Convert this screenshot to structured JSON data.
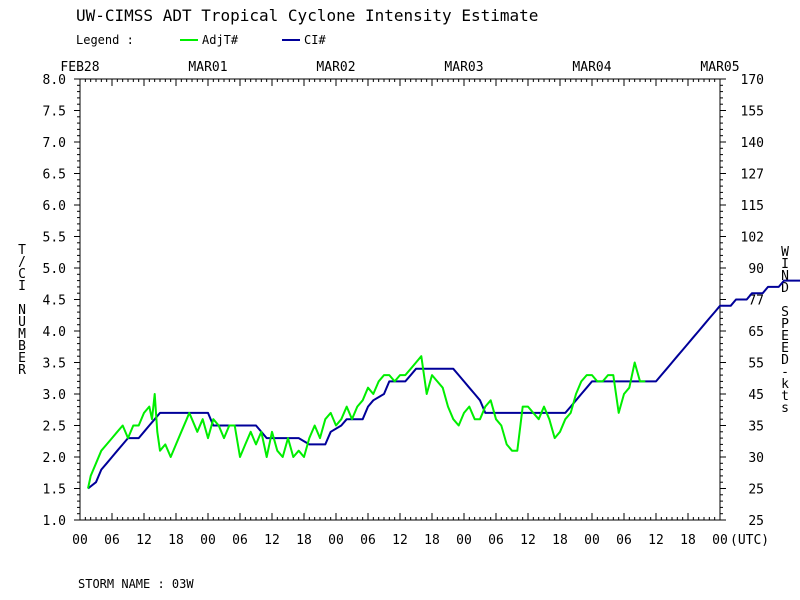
{
  "chart_data": {
    "type": "line",
    "title": "UW-CIMSS ADT Tropical Cyclone Intensity Estimate",
    "legend_label": "Legend :",
    "legend_placement": "top-left",
    "ylabel_left": "T/CI NUMBER",
    "ylabel_right": "WIND SPEED-kts",
    "xlabel": "(UTC)",
    "footer": "STORM NAME : 03W",
    "ylim": [
      1.0,
      8.0
    ],
    "xlim_hours": [
      0,
      120
    ],
    "grid": false,
    "y_ticks": [
      "1.0",
      "1.5",
      "2.0",
      "2.5",
      "3.0",
      "3.5",
      "4.0",
      "4.5",
      "5.0",
      "5.5",
      "6.0",
      "6.5",
      "7.0",
      "7.5",
      "8.0"
    ],
    "wind_ticks": [
      "25",
      "25",
      "30",
      "35",
      "45",
      "55",
      "65",
      "77",
      "90",
      "102",
      "115",
      "127",
      "140",
      "155",
      "170"
    ],
    "date_labels": [
      "FEB28",
      "MAR01",
      "MAR02",
      "MAR03",
      "MAR04",
      "MAR05"
    ],
    "x_tick_labels": [
      "00",
      "06",
      "12",
      "18",
      "00",
      "06",
      "12",
      "18",
      "00",
      "06",
      "12",
      "18",
      "00",
      "06",
      "12",
      "18",
      "00",
      "06",
      "12",
      "18",
      "00"
    ],
    "series": [
      {
        "name": "AdjT#",
        "color": "#00ee00",
        "points": [
          [
            1.5,
            1.5
          ],
          [
            2,
            1.7
          ],
          [
            3,
            1.9
          ],
          [
            4,
            2.1
          ],
          [
            5,
            2.2
          ],
          [
            6,
            2.3
          ],
          [
            7,
            2.4
          ],
          [
            8,
            2.5
          ],
          [
            9,
            2.3
          ],
          [
            10,
            2.5
          ],
          [
            11,
            2.5
          ],
          [
            12,
            2.7
          ],
          [
            13,
            2.8
          ],
          [
            13.5,
            2.6
          ],
          [
            14,
            3.0
          ],
          [
            14.5,
            2.4
          ],
          [
            15,
            2.1
          ],
          [
            16,
            2.2
          ],
          [
            17,
            2.0
          ],
          [
            18,
            2.2
          ],
          [
            19,
            2.4
          ],
          [
            20,
            2.6
          ],
          [
            20.5,
            2.7
          ],
          [
            21,
            2.6
          ],
          [
            22,
            2.4
          ],
          [
            23,
            2.6
          ],
          [
            24,
            2.3
          ],
          [
            25,
            2.6
          ],
          [
            26,
            2.5
          ],
          [
            27,
            2.3
          ],
          [
            28,
            2.5
          ],
          [
            29,
            2.5
          ],
          [
            30,
            2.0
          ],
          [
            31,
            2.2
          ],
          [
            32,
            2.4
          ],
          [
            33,
            2.2
          ],
          [
            34,
            2.4
          ],
          [
            35,
            2.0
          ],
          [
            36,
            2.4
          ],
          [
            37,
            2.1
          ],
          [
            38,
            2.0
          ],
          [
            39,
            2.3
          ],
          [
            40,
            2.0
          ],
          [
            41,
            2.1
          ],
          [
            42,
            2.0
          ],
          [
            43,
            2.3
          ],
          [
            44,
            2.5
          ],
          [
            45,
            2.3
          ],
          [
            46,
            2.6
          ],
          [
            47,
            2.7
          ],
          [
            48,
            2.5
          ],
          [
            49,
            2.6
          ],
          [
            50,
            2.8
          ],
          [
            51,
            2.6
          ],
          [
            52,
            2.8
          ],
          [
            53,
            2.9
          ],
          [
            54,
            3.1
          ],
          [
            55,
            3.0
          ],
          [
            56,
            3.2
          ],
          [
            57,
            3.3
          ],
          [
            58,
            3.3
          ],
          [
            59,
            3.2
          ],
          [
            60,
            3.3
          ],
          [
            61,
            3.3
          ],
          [
            62,
            3.4
          ],
          [
            63,
            3.5
          ],
          [
            64,
            3.6
          ],
          [
            65,
            3.0
          ],
          [
            66,
            3.3
          ],
          [
            67,
            3.2
          ],
          [
            68,
            3.1
          ],
          [
            69,
            2.8
          ],
          [
            70,
            2.6
          ],
          [
            71,
            2.5
          ],
          [
            72,
            2.7
          ],
          [
            73,
            2.8
          ],
          [
            74,
            2.6
          ],
          [
            75,
            2.6
          ],
          [
            76,
            2.8
          ],
          [
            77,
            2.9
          ],
          [
            78,
            2.6
          ],
          [
            79,
            2.5
          ],
          [
            80,
            2.2
          ],
          [
            81,
            2.1
          ],
          [
            82,
            2.1
          ],
          [
            83,
            2.8
          ],
          [
            84,
            2.8
          ],
          [
            85,
            2.7
          ],
          [
            86,
            2.6
          ],
          [
            87,
            2.8
          ],
          [
            88,
            2.6
          ],
          [
            89,
            2.3
          ],
          [
            90,
            2.4
          ],
          [
            91,
            2.6
          ],
          [
            92,
            2.7
          ],
          [
            93,
            3.0
          ],
          [
            94,
            3.2
          ],
          [
            95,
            3.3
          ],
          [
            96,
            3.3
          ],
          [
            97,
            3.2
          ],
          [
            98,
            3.2
          ],
          [
            99,
            3.3
          ],
          [
            100,
            3.3
          ],
          [
            101,
            2.7
          ],
          [
            102,
            3.0
          ],
          [
            103,
            3.1
          ],
          [
            104,
            3.5
          ],
          [
            105,
            3.2
          ],
          [
            106,
            3.2
          ]
        ]
      },
      {
        "name": "CI#",
        "color": "#000099",
        "points": [
          [
            1.5,
            1.5
          ],
          [
            3,
            1.6
          ],
          [
            4,
            1.8
          ],
          [
            5,
            1.9
          ],
          [
            6,
            2.0
          ],
          [
            7,
            2.1
          ],
          [
            8,
            2.2
          ],
          [
            9,
            2.3
          ],
          [
            11,
            2.3
          ],
          [
            12,
            2.4
          ],
          [
            13,
            2.5
          ],
          [
            14,
            2.6
          ],
          [
            15,
            2.7
          ],
          [
            24,
            2.7
          ],
          [
            25,
            2.5
          ],
          [
            33,
            2.5
          ],
          [
            35,
            2.3
          ],
          [
            41,
            2.3
          ],
          [
            43,
            2.2
          ],
          [
            46,
            2.2
          ],
          [
            47,
            2.4
          ],
          [
            49,
            2.5
          ],
          [
            50,
            2.6
          ],
          [
            53,
            2.6
          ],
          [
            54,
            2.8
          ],
          [
            55,
            2.9
          ],
          [
            57,
            3.0
          ],
          [
            58,
            3.2
          ],
          [
            61,
            3.2
          ],
          [
            62,
            3.3
          ],
          [
            63,
            3.4
          ],
          [
            70,
            3.4
          ],
          [
            71,
            3.3
          ],
          [
            72,
            3.2
          ],
          [
            73,
            3.1
          ],
          [
            74,
            3.0
          ],
          [
            75,
            2.9
          ],
          [
            76,
            2.7
          ],
          [
            91,
            2.7
          ],
          [
            92,
            2.8
          ],
          [
            93,
            2.9
          ],
          [
            94,
            3.0
          ],
          [
            95,
            3.1
          ],
          [
            96,
            3.2
          ],
          [
            108,
            3.2
          ],
          [
            109,
            3.3
          ],
          [
            110,
            3.4
          ],
          [
            111,
            3.5
          ],
          [
            112,
            3.6
          ],
          [
            113,
            3.7
          ],
          [
            114,
            3.8
          ],
          [
            115,
            3.9
          ],
          [
            116,
            4.0
          ],
          [
            117,
            4.1
          ],
          [
            118,
            4.2
          ],
          [
            119,
            4.3
          ],
          [
            120,
            4.4
          ],
          [
            122,
            4.4
          ],
          [
            123,
            4.5
          ],
          [
            125,
            4.5
          ],
          [
            126,
            4.6
          ],
          [
            128,
            4.6
          ],
          [
            129,
            4.7
          ],
          [
            131,
            4.7
          ],
          [
            132,
            4.8
          ],
          [
            135,
            4.8
          ]
        ]
      }
    ]
  }
}
